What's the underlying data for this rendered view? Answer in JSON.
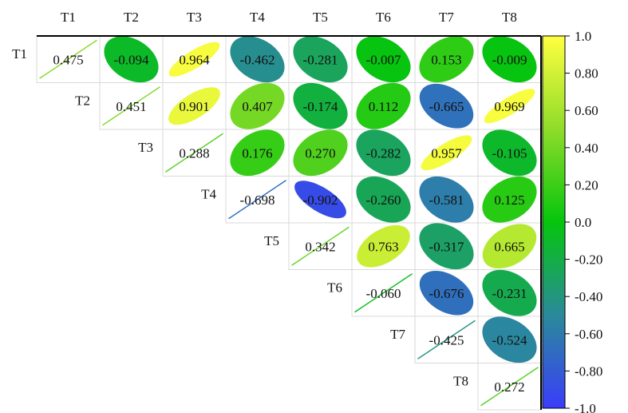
{
  "chart_data": {
    "type": "heatmap",
    "variables": [
      "T1",
      "T2",
      "T3",
      "T4",
      "T5",
      "T6",
      "T7",
      "T8"
    ],
    "matrix": [
      [
        0.475,
        -0.094,
        0.964,
        -0.462,
        -0.281,
        -0.007,
        0.153,
        -0.009
      ],
      [
        null,
        0.451,
        0.901,
        0.407,
        -0.174,
        0.112,
        -0.665,
        0.969
      ],
      [
        null,
        null,
        0.288,
        0.176,
        0.27,
        -0.282,
        0.957,
        -0.105
      ],
      [
        null,
        null,
        null,
        -0.698,
        -0.902,
        -0.26,
        -0.581,
        0.125
      ],
      [
        null,
        null,
        null,
        null,
        0.342,
        0.763,
        -0.317,
        0.665
      ],
      [
        null,
        null,
        null,
        null,
        null,
        -0.06,
        -0.676,
        -0.231
      ],
      [
        null,
        null,
        null,
        null,
        null,
        null,
        -0.425,
        -0.524
      ],
      [
        null,
        null,
        null,
        null,
        null,
        null,
        null,
        0.272
      ]
    ],
    "labels": [
      [
        "0.475",
        "-0.094",
        "0.964",
        "-0.462",
        "-0.281",
        "-0.007",
        "0.153",
        "-0.009"
      ],
      [
        null,
        "0.451",
        "0.901",
        "0.407",
        "-0.174",
        "0.112",
        "-0.665",
        "0.969"
      ],
      [
        null,
        null,
        "0.288",
        "0.176",
        "0.270",
        "-0.282",
        "0.957",
        "-0.105"
      ],
      [
        null,
        null,
        null,
        "-0.698",
        "-0.902",
        "-0.260",
        "-0.581",
        "0.125"
      ],
      [
        null,
        null,
        null,
        null,
        "0.342",
        "0.763",
        "-0.317",
        "0.665"
      ],
      [
        null,
        null,
        null,
        null,
        null,
        "-0.060",
        "-0.676",
        "-0.231"
      ],
      [
        null,
        null,
        null,
        null,
        null,
        null,
        "-0.425",
        "-0.524"
      ],
      [
        null,
        null,
        null,
        null,
        null,
        null,
        null,
        "0.272"
      ]
    ],
    "diagonal_style": "line",
    "off_diagonal_style": "ellipse",
    "colorbar": {
      "range": [
        -1.0,
        1.0
      ],
      "ticks": [
        1.0,
        0.8,
        0.6,
        0.4,
        0.2,
        0.0,
        -0.2,
        -0.4,
        -0.6,
        -0.8,
        -1.0
      ],
      "tick_labels": [
        "1.0",
        "0.80",
        "0.60",
        "0.40",
        "0.20",
        "0.0",
        "-0.20",
        "-0.40",
        "-0.60",
        "-0.80",
        "-1.0"
      ],
      "colors": [
        {
          "stop": -1.0,
          "color": "#3a3dfa"
        },
        {
          "stop": -0.5,
          "color": "#2a8a9a"
        },
        {
          "stop": 0.0,
          "color": "#05c50d"
        },
        {
          "stop": 0.5,
          "color": "#8fdc2a"
        },
        {
          "stop": 1.0,
          "color": "#ffff40"
        }
      ]
    },
    "grid": true
  }
}
